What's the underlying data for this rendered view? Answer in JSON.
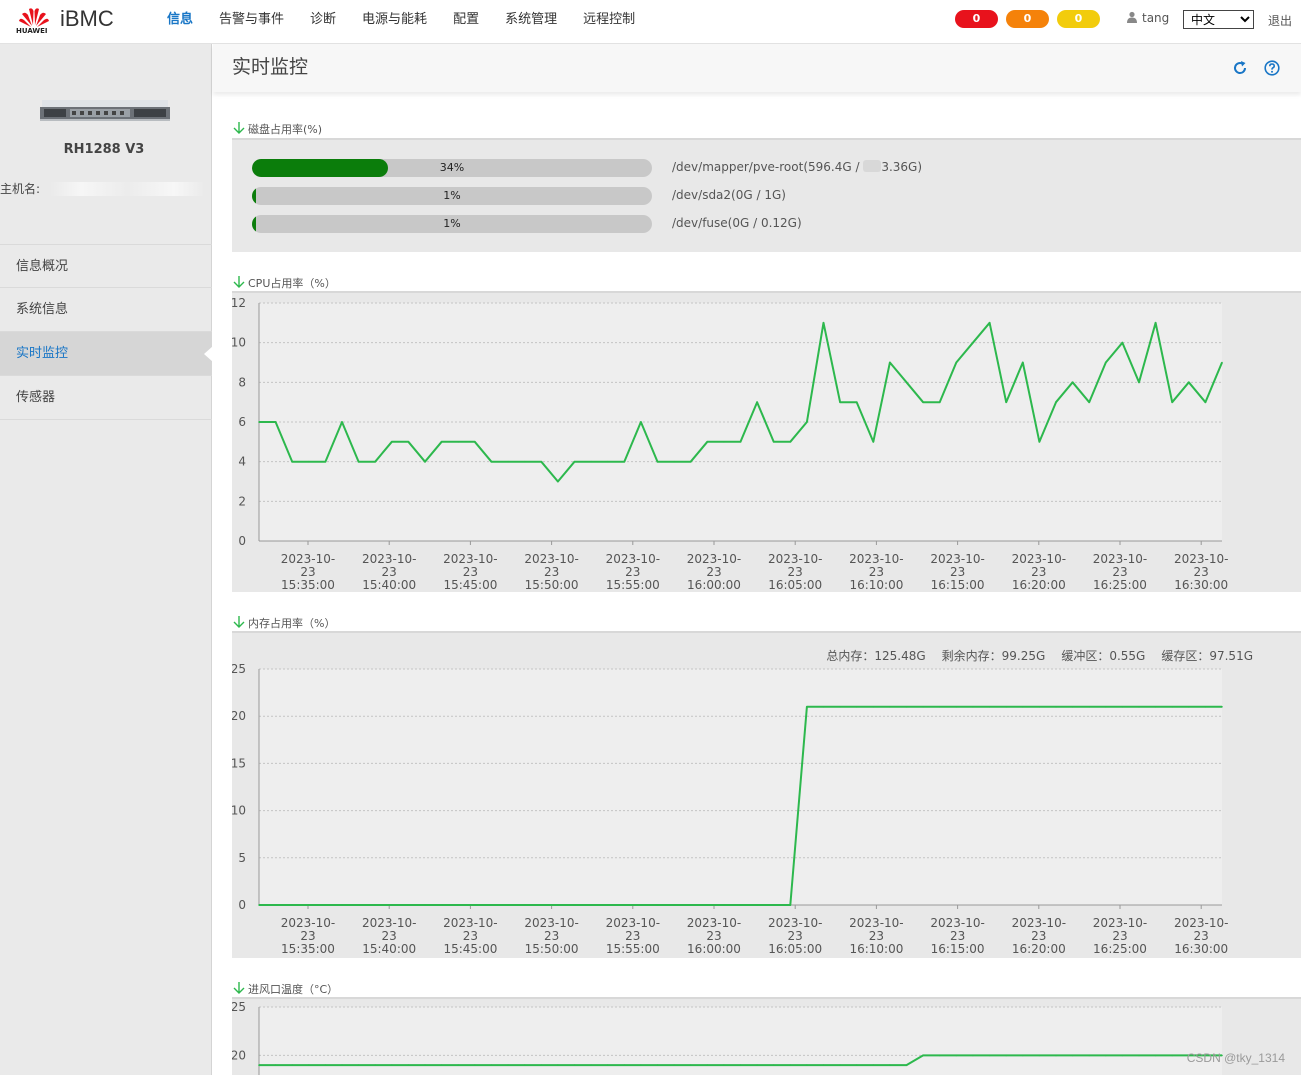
{
  "header": {
    "logo_text": "HUAWEI",
    "brand": "iBMC",
    "nav": [
      "信息",
      "告警与事件",
      "诊断",
      "电源与能耗",
      "配置",
      "系统管理",
      "远程控制"
    ],
    "active_nav": 0,
    "alarms": [
      {
        "value": "0",
        "color": "#e8121c"
      },
      {
        "value": "0",
        "color": "#f5820a"
      },
      {
        "value": "0",
        "color": "#f2cc0c"
      }
    ],
    "user": "tang",
    "language": "中文",
    "logout": "退出"
  },
  "sidebar": {
    "model": "RH1288 V3",
    "hostname_label": "主机名:",
    "items": [
      {
        "label": "信息概况",
        "active": false
      },
      {
        "label": "系统信息",
        "active": false
      },
      {
        "label": "实时监控",
        "active": true
      },
      {
        "label": "传感器",
        "active": false
      }
    ]
  },
  "page": {
    "title": "实时监控",
    "refresh_icon": "refresh-icon",
    "help_icon": "help-icon"
  },
  "disk": {
    "title": "磁盘占用率(%)",
    "rows": [
      {
        "percent": 34,
        "label": "34%",
        "path_prefix": "/dev/mapper/pve-root(596.4G / ",
        "path_suffix": "3.36G)"
      },
      {
        "percent": 1,
        "label": "1%",
        "path_prefix": "/dev/sda2(0G / 1G)",
        "path_suffix": ""
      },
      {
        "percent": 1,
        "label": "1%",
        "path_prefix": "/dev/fuse(0G / 0.12G)",
        "path_suffix": ""
      }
    ]
  },
  "cpu": {
    "title": "CPU占用率（%）"
  },
  "memory": {
    "title": "内存占用率（%）",
    "stats": [
      "总内存：125.48G",
      "剩余内存：99.25G",
      "缓冲区：0.55G",
      "缓存区：97.51G"
    ]
  },
  "inlet": {
    "title": "进风口温度（°C）"
  },
  "x_tick_labels": [
    [
      "2023-10-",
      "23",
      "15:35:00"
    ],
    [
      "2023-10-",
      "23",
      "15:40:00"
    ],
    [
      "2023-10-",
      "23",
      "15:45:00"
    ],
    [
      "2023-10-",
      "23",
      "15:50:00"
    ],
    [
      "2023-10-",
      "23",
      "15:55:00"
    ],
    [
      "2023-10-",
      "23",
      "16:00:00"
    ],
    [
      "2023-10-",
      "23",
      "16:05:00"
    ],
    [
      "2023-10-",
      "23",
      "16:10:00"
    ],
    [
      "2023-10-",
      "23",
      "16:15:00"
    ],
    [
      "2023-10-",
      "23",
      "16:20:00"
    ],
    [
      "2023-10-",
      "23",
      "16:25:00"
    ],
    [
      "2023-10-",
      "23",
      "16:30:00"
    ]
  ],
  "chart_data": [
    {
      "type": "line",
      "title": "CPU占用率（%）",
      "color": "#2db84d",
      "ylim": [
        0,
        12
      ],
      "yticks": [
        0,
        2,
        4,
        6,
        8,
        10,
        12
      ],
      "grid": true,
      "values": [
        6,
        6,
        4,
        4,
        4,
        6,
        4,
        4,
        5,
        5,
        4,
        5,
        5,
        5,
        4,
        4,
        4,
        4,
        3,
        4,
        4,
        4,
        4,
        6,
        4,
        4,
        4,
        5,
        5,
        5,
        7,
        5,
        5,
        6,
        11,
        7,
        7,
        5,
        9,
        8,
        7,
        7,
        9,
        10,
        11,
        7,
        9,
        5,
        7,
        8,
        7,
        9,
        10,
        8,
        11,
        7,
        8,
        7,
        9
      ]
    },
    {
      "type": "line",
      "title": "内存占用率（%）",
      "color": "#2db84d",
      "ylim": [
        0,
        25
      ],
      "yticks": [
        0,
        5,
        10,
        15,
        20,
        25
      ],
      "grid": true,
      "values": [
        0,
        0,
        0,
        0,
        0,
        0,
        0,
        0,
        0,
        0,
        0,
        0,
        0,
        0,
        0,
        0,
        0,
        0,
        0,
        0,
        0,
        0,
        0,
        0,
        0,
        0,
        0,
        0,
        0,
        0,
        0,
        0,
        0,
        21,
        21,
        21,
        21,
        21,
        21,
        21,
        21,
        21,
        21,
        21,
        21,
        21,
        21,
        21,
        21,
        21,
        21,
        21,
        21,
        21,
        21,
        21,
        21,
        21,
        21
      ]
    },
    {
      "type": "line",
      "title": "进风口温度（°C）",
      "color": "#2db84d",
      "ylim": [
        0,
        25
      ],
      "yticks": [
        20,
        25
      ],
      "grid": true,
      "values": [
        19,
        19,
        19,
        19,
        19,
        19,
        19,
        19,
        19,
        19,
        19,
        19,
        19,
        19,
        19,
        19,
        19,
        19,
        19,
        19,
        19,
        19,
        19,
        19,
        19,
        19,
        19,
        19,
        19,
        19,
        19,
        19,
        19,
        19,
        19,
        19,
        19,
        19,
        19,
        19,
        20,
        20,
        20,
        20,
        20,
        20,
        20,
        20,
        20,
        20,
        20,
        20,
        20,
        20,
        20,
        20,
        20,
        20,
        20
      ]
    }
  ],
  "watermark": "CSDN @tky_1314"
}
